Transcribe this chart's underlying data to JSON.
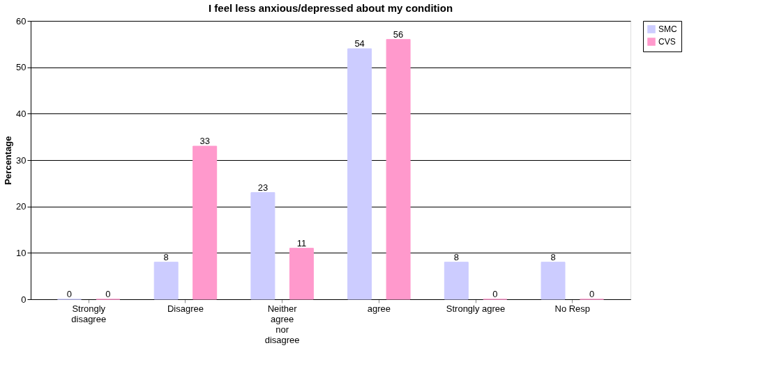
{
  "chart_data": {
    "type": "bar",
    "title": "I feel less anxious/depressed about my condition",
    "ylabel": "Percentage",
    "categories": [
      "Strongly disagree",
      "Disagree",
      "Neither agree nor disagree",
      "agree",
      "Strongly agree",
      "No Resp"
    ],
    "series": [
      {
        "name": "SMC",
        "color": "#ccccff",
        "values": [
          0,
          8,
          23,
          54,
          8,
          8
        ]
      },
      {
        "name": "CVS",
        "color": "#ff99cc",
        "values": [
          0,
          33,
          11,
          56,
          0,
          0
        ]
      }
    ],
    "ylim": [
      0,
      60
    ],
    "yticks": [
      0,
      10,
      20,
      30,
      40,
      50,
      60
    ],
    "grid": "y",
    "legend": "right",
    "data_labels": true
  }
}
